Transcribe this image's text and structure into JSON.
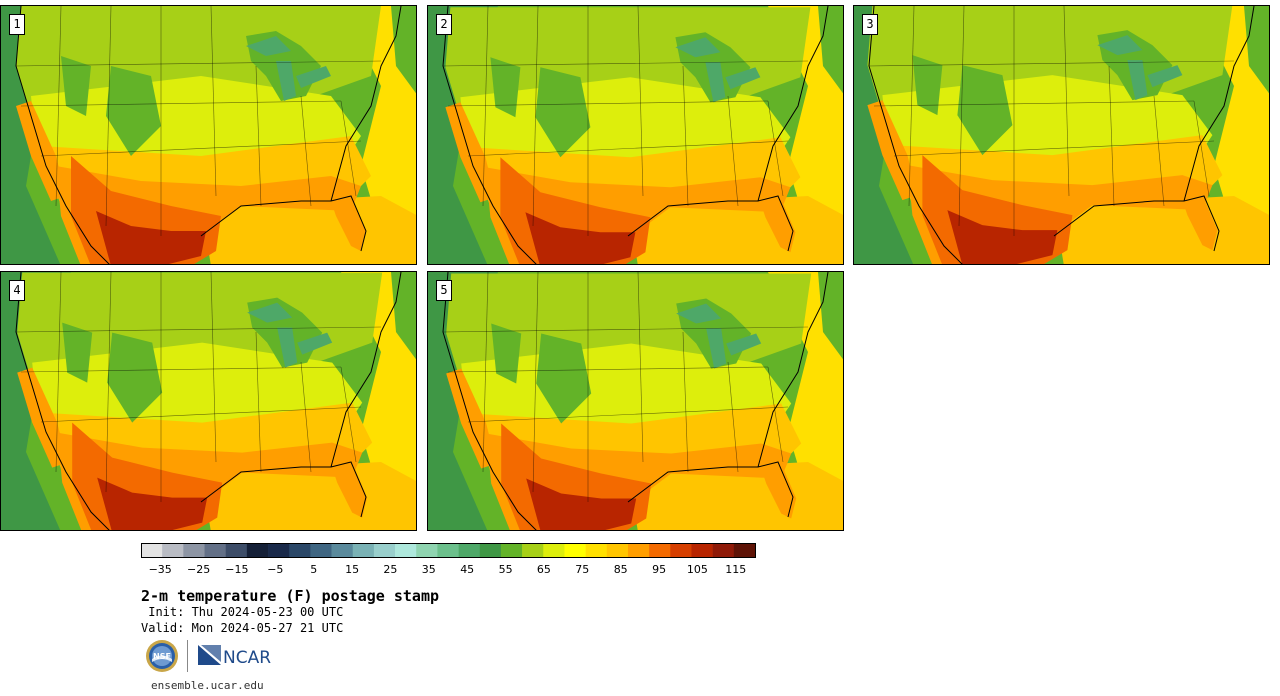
{
  "panels": [
    {
      "label": "1"
    },
    {
      "label": "2"
    },
    {
      "label": "3"
    },
    {
      "label": "4"
    },
    {
      "label": "5"
    }
  ],
  "colorbar": {
    "colors": [
      "#e3e3e3",
      "#b9bcc4",
      "#8d95a4",
      "#637087",
      "#3d4d68",
      "#152037",
      "#1a2a4a",
      "#2b4868",
      "#3f6682",
      "#5a8a9c",
      "#7ab2b5",
      "#99cfcc",
      "#aee8dc",
      "#8fd4b0",
      "#6cc08c",
      "#4ea868",
      "#3f9745",
      "#63b328",
      "#a7d017",
      "#ddee0c",
      "#ffff00",
      "#ffe000",
      "#ffc500",
      "#ff9e00",
      "#f36a00",
      "#d63f00",
      "#b82500",
      "#8f1a08",
      "#5e1306"
    ],
    "tick_labels": [
      "−35",
      "−25",
      "−15",
      "−5",
      "5",
      "15",
      "25",
      "35",
      "45",
      "55",
      "65",
      "75",
      "85",
      "95",
      "105",
      "115"
    ]
  },
  "title": "2-m temperature (F) postage stamp",
  "init": " Init: Thu 2024-05-23 00 UTC",
  "valid": "Valid: Mon 2024-05-27 21 UTC",
  "logos": {
    "nsf": "NSF",
    "ncar": "NCAR"
  },
  "website": "ensemble.ucar.edu",
  "map_colors": {
    "ocean_cold": "#3f9745",
    "ocean_mid": "#63b328",
    "ocean_warm": "#ffe000",
    "gulf": "#ffc500",
    "north": "#a7d017",
    "central": "#ddee0c",
    "warm": "#ffc500",
    "hot": "#ff9e00",
    "hotter": "#f36a00",
    "hottest": "#b82500",
    "lakes": "#4ea868",
    "mountains": "#63b328"
  }
}
